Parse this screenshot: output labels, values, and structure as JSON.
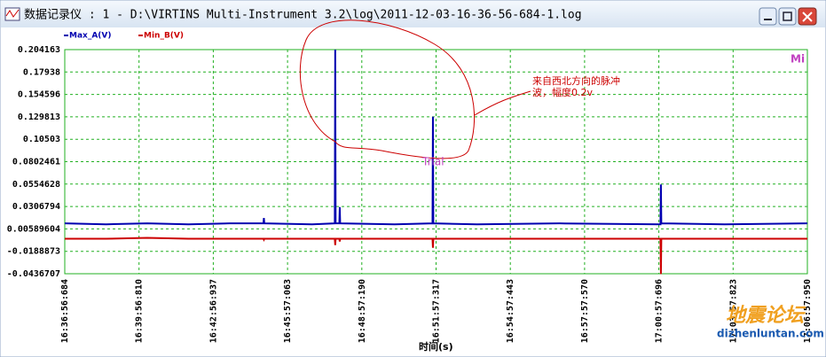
{
  "window": {
    "title": "数据记录仪 : 1 - D:\\VIRTINS Multi-Instrument 3.2\\log\\2011-12-03-16-36-56-684-1.log"
  },
  "chart_data": {
    "type": "line",
    "x_label": "时间(s)",
    "x": [
      0,
      100,
      200,
      300,
      400,
      482,
      483,
      484,
      600,
      655,
      656,
      657,
      666,
      667,
      668,
      800,
      892,
      893,
      894,
      1000,
      1200,
      1445,
      1446,
      1447,
      1600,
      1801.266
    ],
    "series": [
      {
        "name": "Max_A(V)",
        "color": "#0000b0",
        "values": [
          0.012,
          0.011,
          0.012,
          0.011,
          0.012,
          0.012,
          0.018,
          0.012,
          0.011,
          0.012,
          0.204163,
          0.012,
          0.012,
          0.03,
          0.012,
          0.011,
          0.012,
          0.13,
          0.012,
          0.011,
          0.012,
          0.011,
          0.055,
          0.012,
          0.011,
          0.012
        ]
      },
      {
        "name": "Min_B(V)",
        "color": "#cc0000",
        "values": [
          -0.005,
          -0.005,
          -0.004,
          -0.005,
          -0.005,
          -0.005,
          -0.006,
          -0.005,
          -0.005,
          -0.005,
          -0.012,
          -0.005,
          -0.005,
          -0.008,
          -0.005,
          -0.005,
          -0.005,
          -0.015,
          -0.005,
          -0.005,
          -0.005,
          -0.005,
          -0.044,
          -0.005,
          -0.005,
          -0.005
        ]
      }
    ],
    "xlim": [
      0,
      1801.266
    ],
    "xticks": [
      {
        "value": 0,
        "label": "16:36:56:684"
      },
      {
        "value": 180.126,
        "label": "16:39:56:810"
      },
      {
        "value": 360.253,
        "label": "16:42:56:937"
      },
      {
        "value": 540.379,
        "label": "16:45:57:063"
      },
      {
        "value": 720.506,
        "label": "16:48:57:190"
      },
      {
        "value": 900.633,
        "label": "16:51:57:317"
      },
      {
        "value": 1080.759,
        "label": "16:54:57:443"
      },
      {
        "value": 1260.886,
        "label": "16:57:57:570"
      },
      {
        "value": 1441.012,
        "label": "17:00:57:696"
      },
      {
        "value": 1621.139,
        "label": "17:03:57:823"
      },
      {
        "value": 1801.266,
        "label": "17:06:57:950"
      }
    ],
    "ylim": [
      -0.0436707,
      0.204163
    ],
    "yticks": [
      0.204163,
      0.17938,
      0.154596,
      0.129813,
      0.10503,
      0.0802461,
      0.0554628,
      0.0306794,
      0.00589604,
      -0.0188873,
      -0.0436707
    ],
    "grid": true,
    "annotations": [
      "来自西北方向的脉冲",
      "波，幅度0.2v",
      "Trial",
      "Mi"
    ]
  },
  "watermark": {
    "logo": "地震论坛",
    "url": "dizhenluntan.com"
  }
}
